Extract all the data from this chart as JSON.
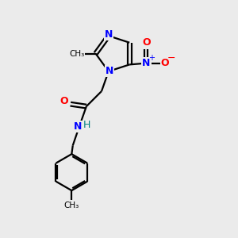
{
  "bg_color": "#ebebeb",
  "bond_color": "#000000",
  "N_color": "#0000ff",
  "O_color": "#ff0000",
  "H_color": "#008080",
  "line_width": 1.6,
  "figsize": [
    3.0,
    3.0
  ],
  "dpi": 100,
  "xlim": [
    0,
    10
  ],
  "ylim": [
    0,
    10
  ]
}
